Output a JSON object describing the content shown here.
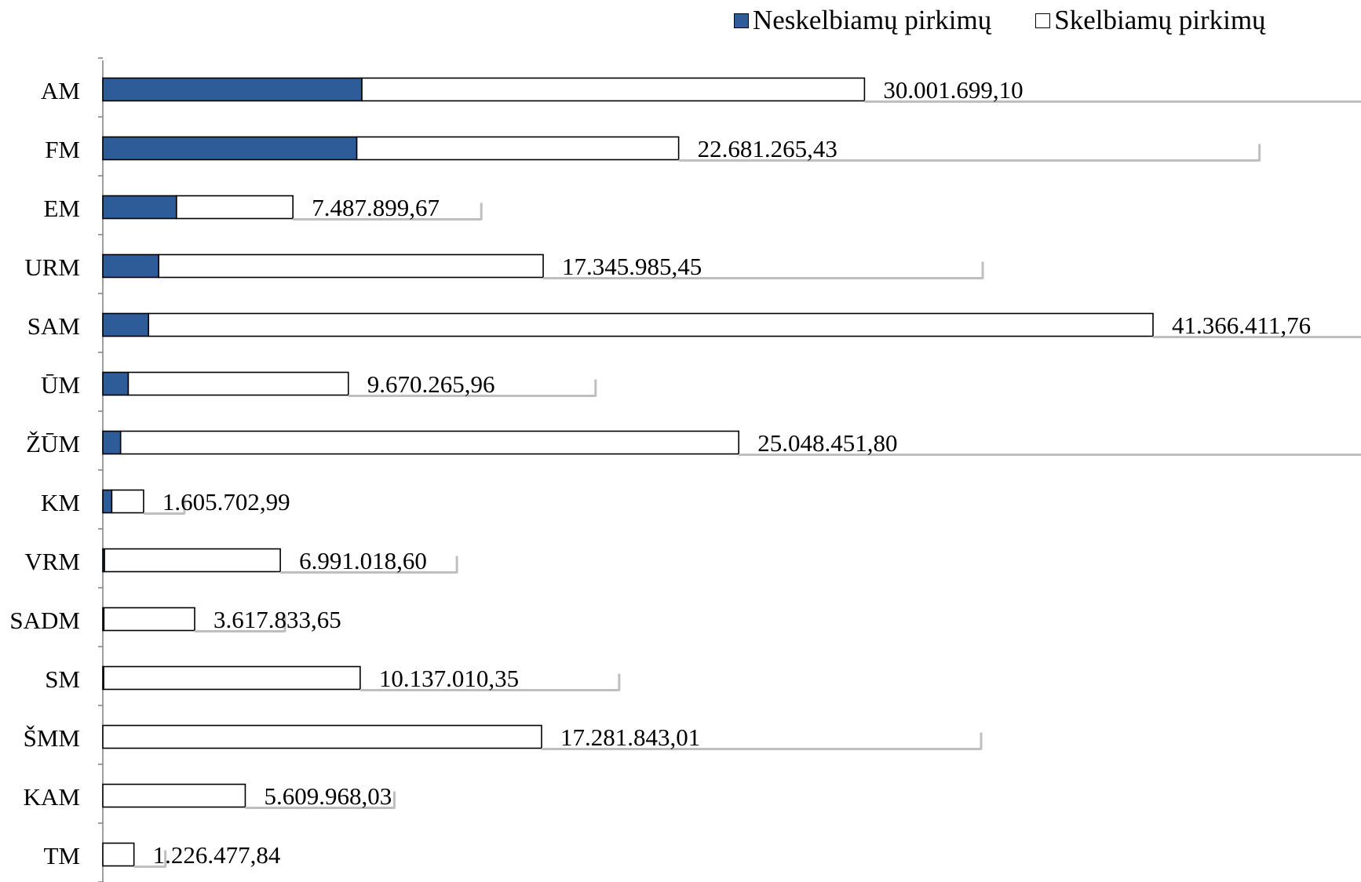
{
  "legend": {
    "unannounced_label": "Neskelbiamų pirkimų",
    "announced_label": "Skelbiamų pirkimų"
  },
  "colors": {
    "unannounced": "#2E5C99",
    "announced": "#FFFFFF",
    "outline": "#000000",
    "label_shadow": "#BFBFBF"
  },
  "chart_data": {
    "type": "bar",
    "orientation": "horizontal",
    "stacked": true,
    "categories": [
      "AM",
      "FM",
      "EM",
      "URM",
      "SAM",
      "ŪM",
      "ŽŪM",
      "KM",
      "VRM",
      "SADM",
      "SM",
      "ŠMM",
      "KAM",
      "TM"
    ],
    "series": [
      {
        "name": "Neskelbiamų pirkimų",
        "color": "#2E5C99",
        "values": [
          10200000,
          10000000,
          2900000,
          2200000,
          1800000,
          1000000,
          700000,
          350000,
          60000,
          40000,
          30000,
          0,
          0,
          0
        ]
      },
      {
        "name": "Skelbiamų pirkimų",
        "color": "#FFFFFF",
        "values": [
          19801699.1,
          12681265.43,
          4587899.67,
          15145985.45,
          39566411.76,
          8670265.96,
          24348451.8,
          1255702.99,
          6931018.6,
          3577833.65,
          10107010.35,
          17281843.01,
          5609968.03,
          1226477.84
        ]
      }
    ],
    "total_labels": [
      "30.001.699,10",
      "22.681.265,43",
      "7.487.899,67",
      "17.345.985,45",
      "41.366.411,76",
      "9.670.265,96",
      "25.048.451,80",
      "1.605.702,99",
      "6.991.018,60",
      "3.617.833,65",
      "10.137.010,35",
      "17.281.843,01",
      "5.609.968,03",
      "1.226.477,84"
    ],
    "xlim": [
      0,
      41366411.76
    ],
    "legend_position": "top-right",
    "grid": false
  }
}
